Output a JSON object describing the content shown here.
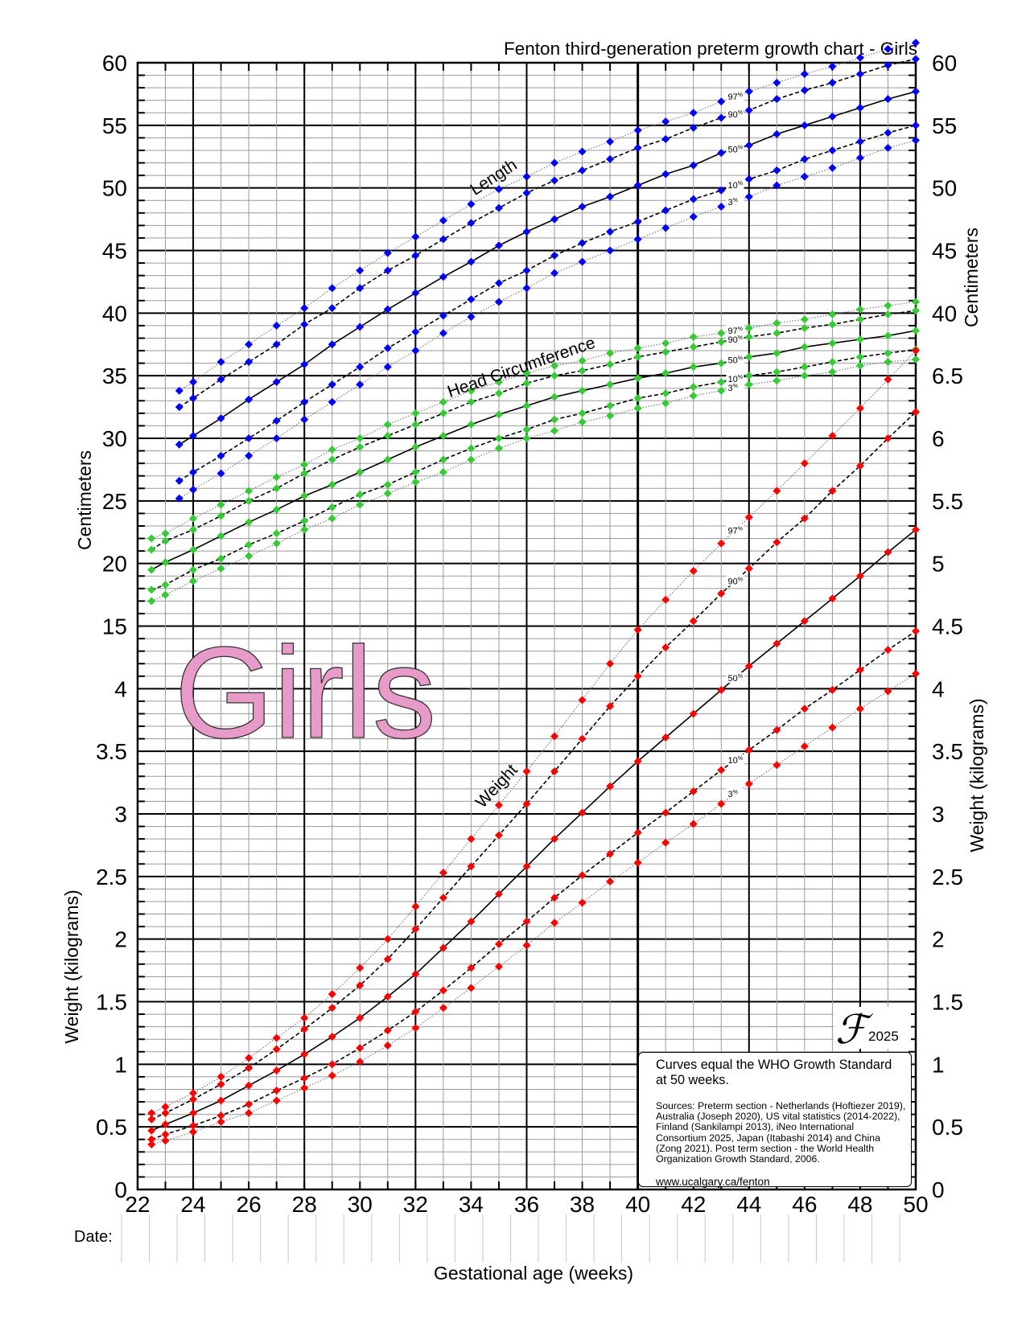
{
  "chart_data": {
    "type": "line",
    "title": "Fenton third-generation preterm growth chart - Girls",
    "xlabel": "Gestational age (weeks)",
    "xlim": [
      22,
      50
    ],
    "x_ticks": [
      "22",
      "24",
      "26",
      "28",
      "30",
      "32",
      "34",
      "36",
      "38",
      "40",
      "42",
      "44",
      "46",
      "48",
      "50"
    ],
    "grid": true,
    "left_axis": {
      "title_top": "Centimeters",
      "title_bottom": "Weight (kilograms)",
      "tick_labels": [
        "60",
        "55",
        "50",
        "45",
        "40",
        "35",
        "30",
        "25",
        "20",
        "15",
        "4",
        "3.5",
        "3",
        "2.5",
        "2",
        "1.5",
        "1",
        "0.5",
        "0"
      ]
    },
    "right_axis": {
      "title_top": "Centimeters",
      "title_bottom": "Weight (kilograms)",
      "tick_labels": [
        "60",
        "55",
        "50",
        "45",
        "40",
        "6.5",
        "6",
        "5.5",
        "5",
        "4.5",
        "4",
        "3.5",
        "3",
        "2.5",
        "2",
        "1.5",
        "1",
        "0.5",
        "0"
      ]
    },
    "cm_scale": {
      "top": 60,
      "step_per_major": 5
    },
    "kg_scale": {
      "bottom": 0,
      "step_per_major": 0.5
    },
    "percent_symbol": "%",
    "groups": [
      {
        "name": "Length",
        "unit": "cm",
        "color": "#0000ff",
        "weeks": [
          23.5,
          24,
          25,
          26,
          27,
          28,
          29,
          30,
          31,
          32,
          33,
          34,
          35,
          36,
          37,
          38,
          39,
          40,
          41,
          42,
          43,
          44,
          45,
          46,
          47,
          48,
          49,
          50
        ],
        "series": [
          {
            "label": "97",
            "style": "dotted",
            "values": [
              33.8,
              34.5,
              36.1,
              37.5,
              39.0,
              40.4,
              42.0,
              43.4,
              44.8,
              46.1,
              47.4,
              48.7,
              49.9,
              50.9,
              52.0,
              52.9,
              53.7,
              54.6,
              55.3,
              56.0,
              56.9,
              57.7,
              58.4,
              59.1,
              59.7,
              60.4,
              61.1,
              61.6
            ]
          },
          {
            "label": "90",
            "style": "dashed",
            "values": [
              32.5,
              33.2,
              34.7,
              36.1,
              37.5,
              39.1,
              40.4,
              42.0,
              43.4,
              44.6,
              45.9,
              47.2,
              48.4,
              49.6,
              50.6,
              51.4,
              52.3,
              53.2,
              53.9,
              54.8,
              55.6,
              56.2,
              57.1,
              57.8,
              58.4,
              59.1,
              59.8,
              60.3
            ]
          },
          {
            "label": "50",
            "style": "solid",
            "values": [
              29.5,
              30.2,
              31.6,
              33.1,
              34.5,
              35.9,
              37.5,
              38.9,
              40.3,
              41.6,
              42.9,
              44.1,
              45.4,
              46.5,
              47.5,
              48.5,
              49.3,
              50.2,
              51.1,
              51.8,
              52.8,
              53.4,
              54.3,
              55.0,
              55.7,
              56.4,
              57.1,
              57.7
            ]
          },
          {
            "label": "10",
            "style": "dashed",
            "values": [
              26.6,
              27.3,
              28.6,
              30.0,
              31.4,
              32.9,
              34.3,
              35.7,
              37.2,
              38.5,
              39.8,
              41.1,
              42.4,
              43.4,
              44.6,
              45.6,
              46.5,
              47.3,
              48.2,
              49.1,
              49.8,
              50.7,
              51.4,
              52.3,
              53.0,
              53.7,
              54.4,
              55.0
            ]
          },
          {
            "label": "3",
            "style": "dotted",
            "values": [
              25.2,
              25.9,
              27.2,
              28.6,
              30.0,
              31.5,
              32.9,
              34.3,
              35.7,
              37.0,
              38.4,
              39.7,
              40.9,
              42.0,
              43.2,
              44.1,
              45.0,
              45.9,
              46.8,
              47.7,
              48.5,
              49.3,
              50.2,
              50.9,
              51.6,
              52.4,
              53.2,
              53.8
            ]
          }
        ]
      },
      {
        "name": "Head Circumference",
        "unit": "cm",
        "color": "#33cc33",
        "weeks": [
          22.5,
          23,
          24,
          25,
          26,
          27,
          28,
          29,
          30,
          31,
          32,
          33,
          34,
          35,
          36,
          37,
          38,
          39,
          40,
          41,
          42,
          43,
          44,
          45,
          46,
          47,
          48,
          49,
          50
        ],
        "series": [
          {
            "label": "97",
            "style": "dotted",
            "values": [
              22.0,
              22.4,
              23.6,
              24.7,
              25.8,
              26.9,
              27.9,
              29.1,
              30.0,
              31.1,
              32.0,
              32.9,
              33.8,
              34.5,
              35.2,
              35.8,
              36.2,
              36.8,
              37.2,
              37.6,
              38.1,
              38.4,
              38.8,
              39.2,
              39.5,
              39.9,
              40.3,
              40.6,
              40.9
            ]
          },
          {
            "label": "90",
            "style": "dashed",
            "values": [
              21.1,
              21.8,
              22.7,
              23.8,
              25.0,
              26.0,
              27.2,
              28.3,
              29.3,
              30.2,
              31.1,
              32.0,
              32.9,
              33.6,
              34.4,
              35.0,
              35.4,
              35.9,
              36.5,
              36.9,
              37.3,
              37.7,
              38.1,
              38.4,
              38.8,
              39.1,
              39.5,
              39.9,
              40.2
            ]
          },
          {
            "label": "50",
            "style": "solid",
            "values": [
              19.5,
              20.1,
              21.1,
              22.2,
              23.3,
              24.3,
              25.4,
              26.3,
              27.3,
              28.3,
              29.3,
              30.2,
              31.1,
              31.9,
              32.6,
              33.3,
              33.8,
              34.3,
              34.8,
              35.2,
              35.7,
              36.0,
              36.5,
              36.8,
              37.3,
              37.6,
              37.9,
              38.2,
              38.6
            ]
          },
          {
            "label": "10",
            "style": "dashed",
            "values": [
              17.9,
              18.3,
              19.5,
              20.4,
              21.5,
              22.4,
              23.4,
              24.5,
              25.5,
              26.3,
              27.3,
              28.3,
              29.2,
              30.0,
              30.7,
              31.5,
              32.0,
              32.6,
              33.2,
              33.6,
              34.1,
              34.5,
              35.0,
              35.3,
              35.7,
              36.1,
              36.5,
              36.8,
              37.1
            ]
          },
          {
            "label": "3",
            "style": "dotted",
            "values": [
              17.0,
              17.5,
              18.6,
              19.6,
              20.6,
              21.6,
              22.7,
              23.6,
              24.7,
              25.6,
              26.5,
              27.3,
              28.3,
              29.2,
              30.0,
              30.6,
              31.3,
              31.8,
              32.4,
              32.8,
              33.4,
              33.8,
              34.3,
              34.6,
              35.0,
              35.3,
              35.8,
              36.1,
              36.3
            ]
          }
        ]
      },
      {
        "name": "Weight",
        "unit": "kg",
        "color": "#ff0000",
        "weeks": [
          22.5,
          23,
          24,
          25,
          26,
          27,
          28,
          29,
          30,
          31,
          32,
          33,
          34,
          35,
          36,
          37,
          38,
          39,
          40,
          41,
          42,
          43,
          44,
          45,
          46,
          47,
          48,
          49,
          50
        ],
        "series": [
          {
            "label": "97",
            "style": "dotted",
            "values": [
              0.61,
              0.66,
              0.77,
              0.9,
              1.05,
              1.21,
              1.37,
              1.56,
              1.77,
              2.0,
              2.26,
              2.53,
              2.8,
              3.07,
              3.34,
              3.62,
              3.91,
              4.2,
              4.47,
              4.71,
              4.94,
              5.16,
              5.37,
              5.58,
              5.8,
              6.02,
              6.24,
              6.47,
              6.7
            ]
          },
          {
            "label": "90",
            "style": "dashed",
            "values": [
              0.56,
              0.61,
              0.72,
              0.84,
              0.97,
              1.12,
              1.28,
              1.45,
              1.63,
              1.84,
              2.08,
              2.33,
              2.58,
              2.83,
              3.08,
              3.34,
              3.6,
              3.86,
              4.1,
              4.33,
              4.54,
              4.76,
              4.96,
              5.17,
              5.36,
              5.58,
              5.78,
              6.0,
              6.21
            ]
          },
          {
            "label": "50",
            "style": "solid",
            "values": [
              0.47,
              0.52,
              0.61,
              0.71,
              0.83,
              0.95,
              1.08,
              1.22,
              1.37,
              1.54,
              1.72,
              1.93,
              2.14,
              2.36,
              2.58,
              2.8,
              3.01,
              3.22,
              3.42,
              3.61,
              3.8,
              3.99,
              4.18,
              4.36,
              4.54,
              4.72,
              4.9,
              5.09,
              5.27
            ]
          },
          {
            "label": "10",
            "style": "dashed",
            "values": [
              0.4,
              0.44,
              0.51,
              0.59,
              0.68,
              0.79,
              0.89,
              1.0,
              1.13,
              1.27,
              1.42,
              1.59,
              1.77,
              1.96,
              2.14,
              2.33,
              2.51,
              2.68,
              2.85,
              3.01,
              3.18,
              3.35,
              3.51,
              3.67,
              3.84,
              3.99,
              4.15,
              4.31,
              4.46
            ]
          },
          {
            "label": "3",
            "style": "dotted",
            "values": [
              0.36,
              0.39,
              0.46,
              0.54,
              0.61,
              0.71,
              0.81,
              0.91,
              1.02,
              1.15,
              1.29,
              1.45,
              1.61,
              1.78,
              1.95,
              2.13,
              2.29,
              2.46,
              2.61,
              2.77,
              2.92,
              3.08,
              3.24,
              3.39,
              3.54,
              3.69,
              3.84,
              3.98,
              4.12
            ]
          }
        ]
      }
    ]
  },
  "watermark": {
    "text": "Girls",
    "fill": "#e89ac8"
  },
  "logo": {
    "mark": "ℱ",
    "year": "2025"
  },
  "date_row": {
    "label": "Date:"
  },
  "notes": {
    "headline": [
      "Curves equal the WHO Growth Standard",
      "at 50 weeks."
    ],
    "sources": [
      "Sources: Preterm section - Netherlands (Hoftiezer 2019),",
      "Australia (Joseph 2020), US vital statistics (2014-2022),",
      "Finland (Sankilampi 2013), iNeo International",
      "Consortium 2025, Japan (Itabashi 2014) and China",
      "(Zong 2021). Post term section - the World Health",
      "Organization Growth Standard, 2006."
    ],
    "url": "www.ucalgary.ca/fenton"
  }
}
